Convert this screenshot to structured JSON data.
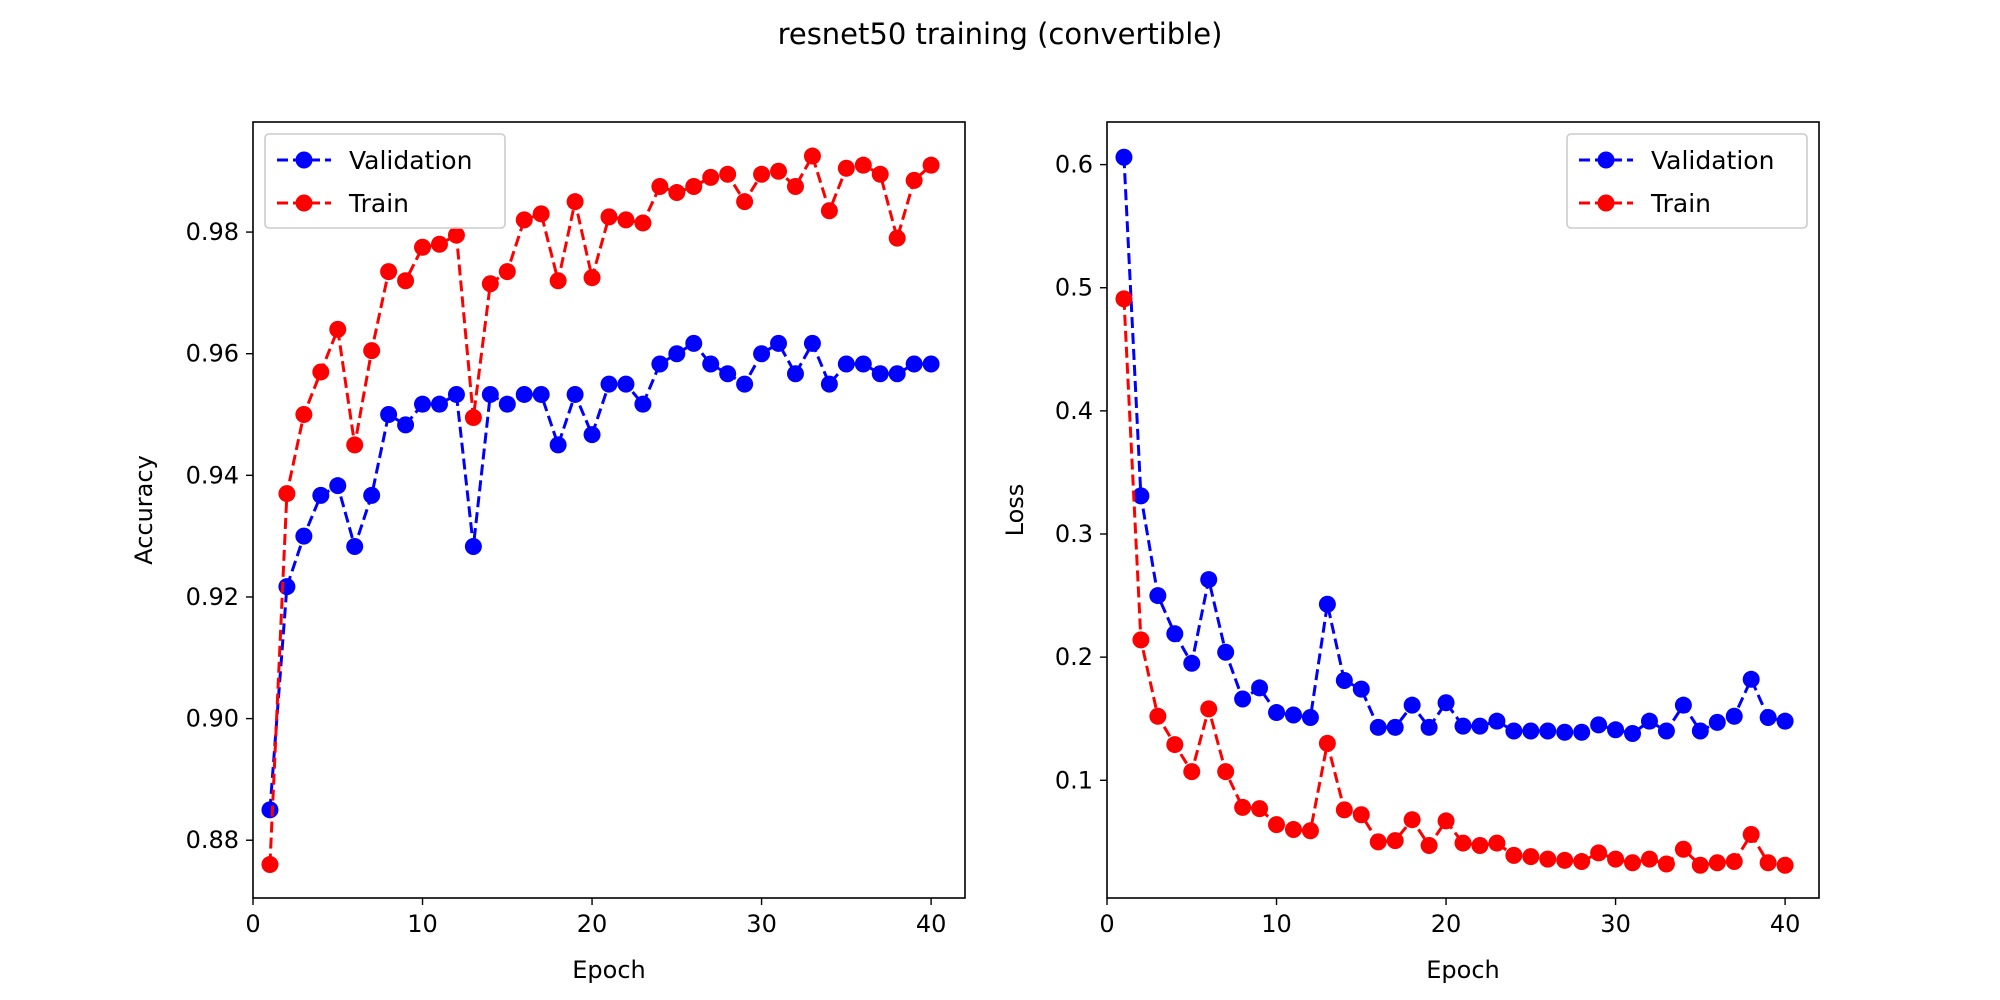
{
  "figure": {
    "title": "resnet50 training (convertible)"
  },
  "colors": {
    "validation": "#0000ff",
    "train": "#ff0000",
    "axes": "#000000",
    "legend_border": "#cccccc",
    "background": "#ffffff"
  },
  "chart_data": [
    {
      "type": "line",
      "marker": "circle",
      "linestyle": "dashed",
      "title": "",
      "xlabel": "Epoch",
      "ylabel": "Accuracy",
      "xlim": [
        0,
        42
      ],
      "ylim": [
        0.8705,
        0.9981
      ],
      "xticks": [
        0,
        10,
        20,
        30,
        40
      ],
      "yticks": [
        0.88,
        0.9,
        0.92,
        0.94,
        0.96,
        0.98
      ],
      "ytick_labels": [
        "0.88",
        "0.90",
        "0.92",
        "0.94",
        "0.96",
        "0.98"
      ],
      "grid": false,
      "legend_position": "top-left",
      "x": [
        1,
        2,
        3,
        4,
        5,
        6,
        7,
        8,
        9,
        10,
        11,
        12,
        13,
        14,
        15,
        16,
        17,
        18,
        19,
        20,
        21,
        22,
        23,
        24,
        25,
        26,
        27,
        28,
        29,
        30,
        31,
        32,
        33,
        34,
        35,
        36,
        37,
        38,
        39,
        40
      ],
      "series": [
        {
          "name": "Validation",
          "color": "#0000ff",
          "values": [
            0.885,
            0.9217,
            0.93,
            0.9367,
            0.9383,
            0.9283,
            0.9367,
            0.95,
            0.9483,
            0.9517,
            0.9517,
            0.9533,
            0.9283,
            0.9533,
            0.9517,
            0.9533,
            0.9533,
            0.945,
            0.9533,
            0.9467,
            0.955,
            0.955,
            0.9517,
            0.9583,
            0.96,
            0.9617,
            0.9583,
            0.9567,
            0.955,
            0.96,
            0.9617,
            0.9567,
            0.9617,
            0.955,
            0.9583,
            0.9583,
            0.9567,
            0.9567,
            0.9583,
            0.9583
          ]
        },
        {
          "name": "Train",
          "color": "#ff0000",
          "values": [
            0.876,
            0.937,
            0.95,
            0.957,
            0.964,
            0.945,
            0.9605,
            0.9735,
            0.972,
            0.9775,
            0.978,
            0.9795,
            0.9495,
            0.9715,
            0.9735,
            0.982,
            0.983,
            0.972,
            0.985,
            0.9725,
            0.9825,
            0.982,
            0.9815,
            0.9875,
            0.9865,
            0.9875,
            0.989,
            0.9895,
            0.985,
            0.9895,
            0.99,
            0.9875,
            0.9925,
            0.9835,
            0.9905,
            0.991,
            0.9895,
            0.979,
            0.9885,
            0.991
          ]
        }
      ]
    },
    {
      "type": "line",
      "marker": "circle",
      "linestyle": "dashed",
      "title": "",
      "xlabel": "Epoch",
      "ylabel": "Loss",
      "xlim": [
        0,
        42
      ],
      "ylim": [
        0.0044,
        0.6346
      ],
      "xticks": [
        0,
        10,
        20,
        30,
        40
      ],
      "yticks": [
        0.1,
        0.2,
        0.3,
        0.4,
        0.5,
        0.6
      ],
      "ytick_labels": [
        "0.1",
        "0.2",
        "0.3",
        "0.4",
        "0.5",
        "0.6"
      ],
      "grid": false,
      "legend_position": "top-right",
      "x": [
        1,
        2,
        3,
        4,
        5,
        6,
        7,
        8,
        9,
        10,
        11,
        12,
        13,
        14,
        15,
        16,
        17,
        18,
        19,
        20,
        21,
        22,
        23,
        24,
        25,
        26,
        27,
        28,
        29,
        30,
        31,
        32,
        33,
        34,
        35,
        36,
        37,
        38,
        39,
        40
      ],
      "series": [
        {
          "name": "Validation",
          "color": "#0000ff",
          "values": [
            0.606,
            0.331,
            0.25,
            0.219,
            0.195,
            0.263,
            0.204,
            0.166,
            0.175,
            0.155,
            0.153,
            0.151,
            0.243,
            0.181,
            0.174,
            0.143,
            0.143,
            0.161,
            0.143,
            0.163,
            0.144,
            0.144,
            0.148,
            0.14,
            0.14,
            0.14,
            0.139,
            0.139,
            0.145,
            0.141,
            0.138,
            0.148,
            0.14,
            0.161,
            0.14,
            0.147,
            0.152,
            0.182,
            0.151,
            0.148
          ]
        },
        {
          "name": "Train",
          "color": "#ff0000",
          "values": [
            0.491,
            0.214,
            0.152,
            0.129,
            0.107,
            0.158,
            0.107,
            0.078,
            0.077,
            0.064,
            0.06,
            0.059,
            0.13,
            0.076,
            0.072,
            0.05,
            0.051,
            0.068,
            0.047,
            0.067,
            0.049,
            0.047,
            0.049,
            0.039,
            0.038,
            0.036,
            0.035,
            0.034,
            0.041,
            0.036,
            0.033,
            0.036,
            0.032,
            0.044,
            0.031,
            0.033,
            0.034,
            0.056,
            0.033,
            0.031
          ]
        }
      ]
    }
  ]
}
